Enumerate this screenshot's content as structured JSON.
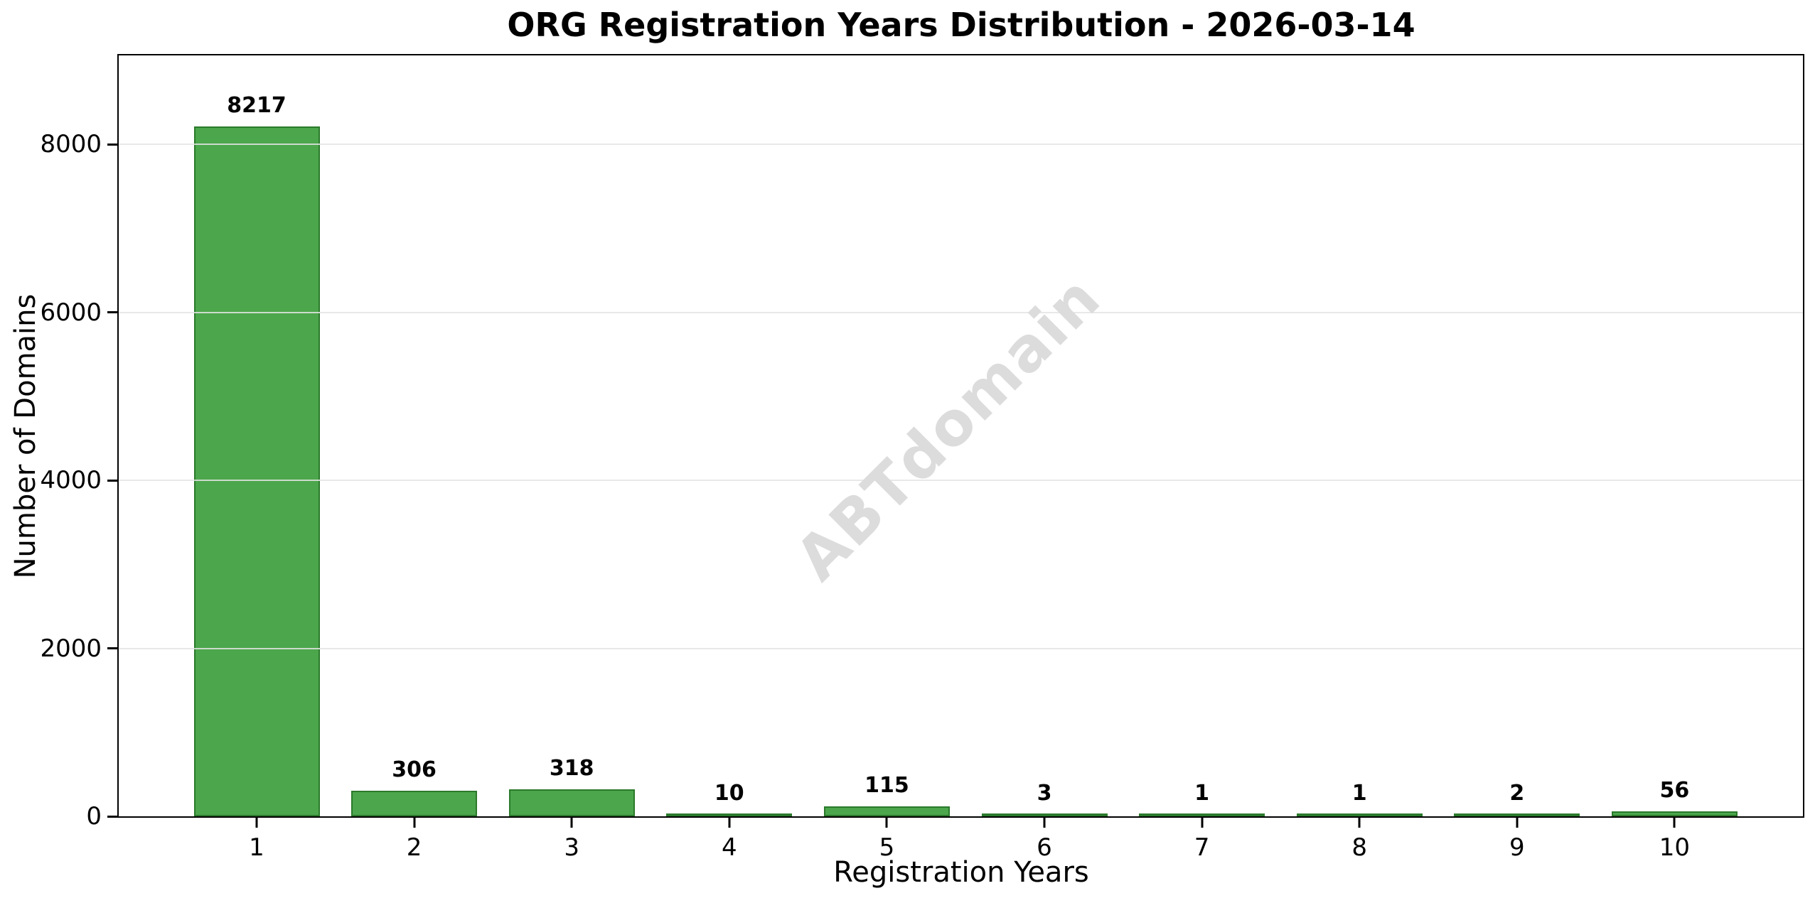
{
  "title": "ORG Registration Years Distribution - 2026-03-14",
  "watermark": "ABTdomain",
  "chart_data": {
    "type": "bar",
    "title": "ORG Registration Years Distribution - 2026-03-14",
    "categories": [
      "1",
      "2",
      "3",
      "4",
      "5",
      "6",
      "7",
      "8",
      "9",
      "10"
    ],
    "values": [
      8217,
      306,
      318,
      10,
      115,
      3,
      1,
      1,
      2,
      56
    ],
    "bar_value_labels": [
      "8217",
      "306",
      "318",
      "10",
      "115",
      "3",
      "1",
      "1",
      "2",
      "56"
    ],
    "xlabel": "Registration Years",
    "ylabel": "Number of Domains",
    "ylim": [
      0,
      9060
    ],
    "yticks": [
      0,
      2000,
      4000,
      6000,
      8000
    ],
    "ytick_labels": [
      "0",
      "2000",
      "4000",
      "6000",
      "8000"
    ],
    "grid": "horizontal",
    "legend": "none",
    "watermark_text": "ABTdomain",
    "colors": {
      "bar_fill": "#4CA64C",
      "bar_edge": "#2B7A2B",
      "gridline": "#e6e6e6",
      "axis": "#000000",
      "text": "#000000",
      "watermark": "#dcdcdc",
      "background": "#ffffff"
    }
  }
}
